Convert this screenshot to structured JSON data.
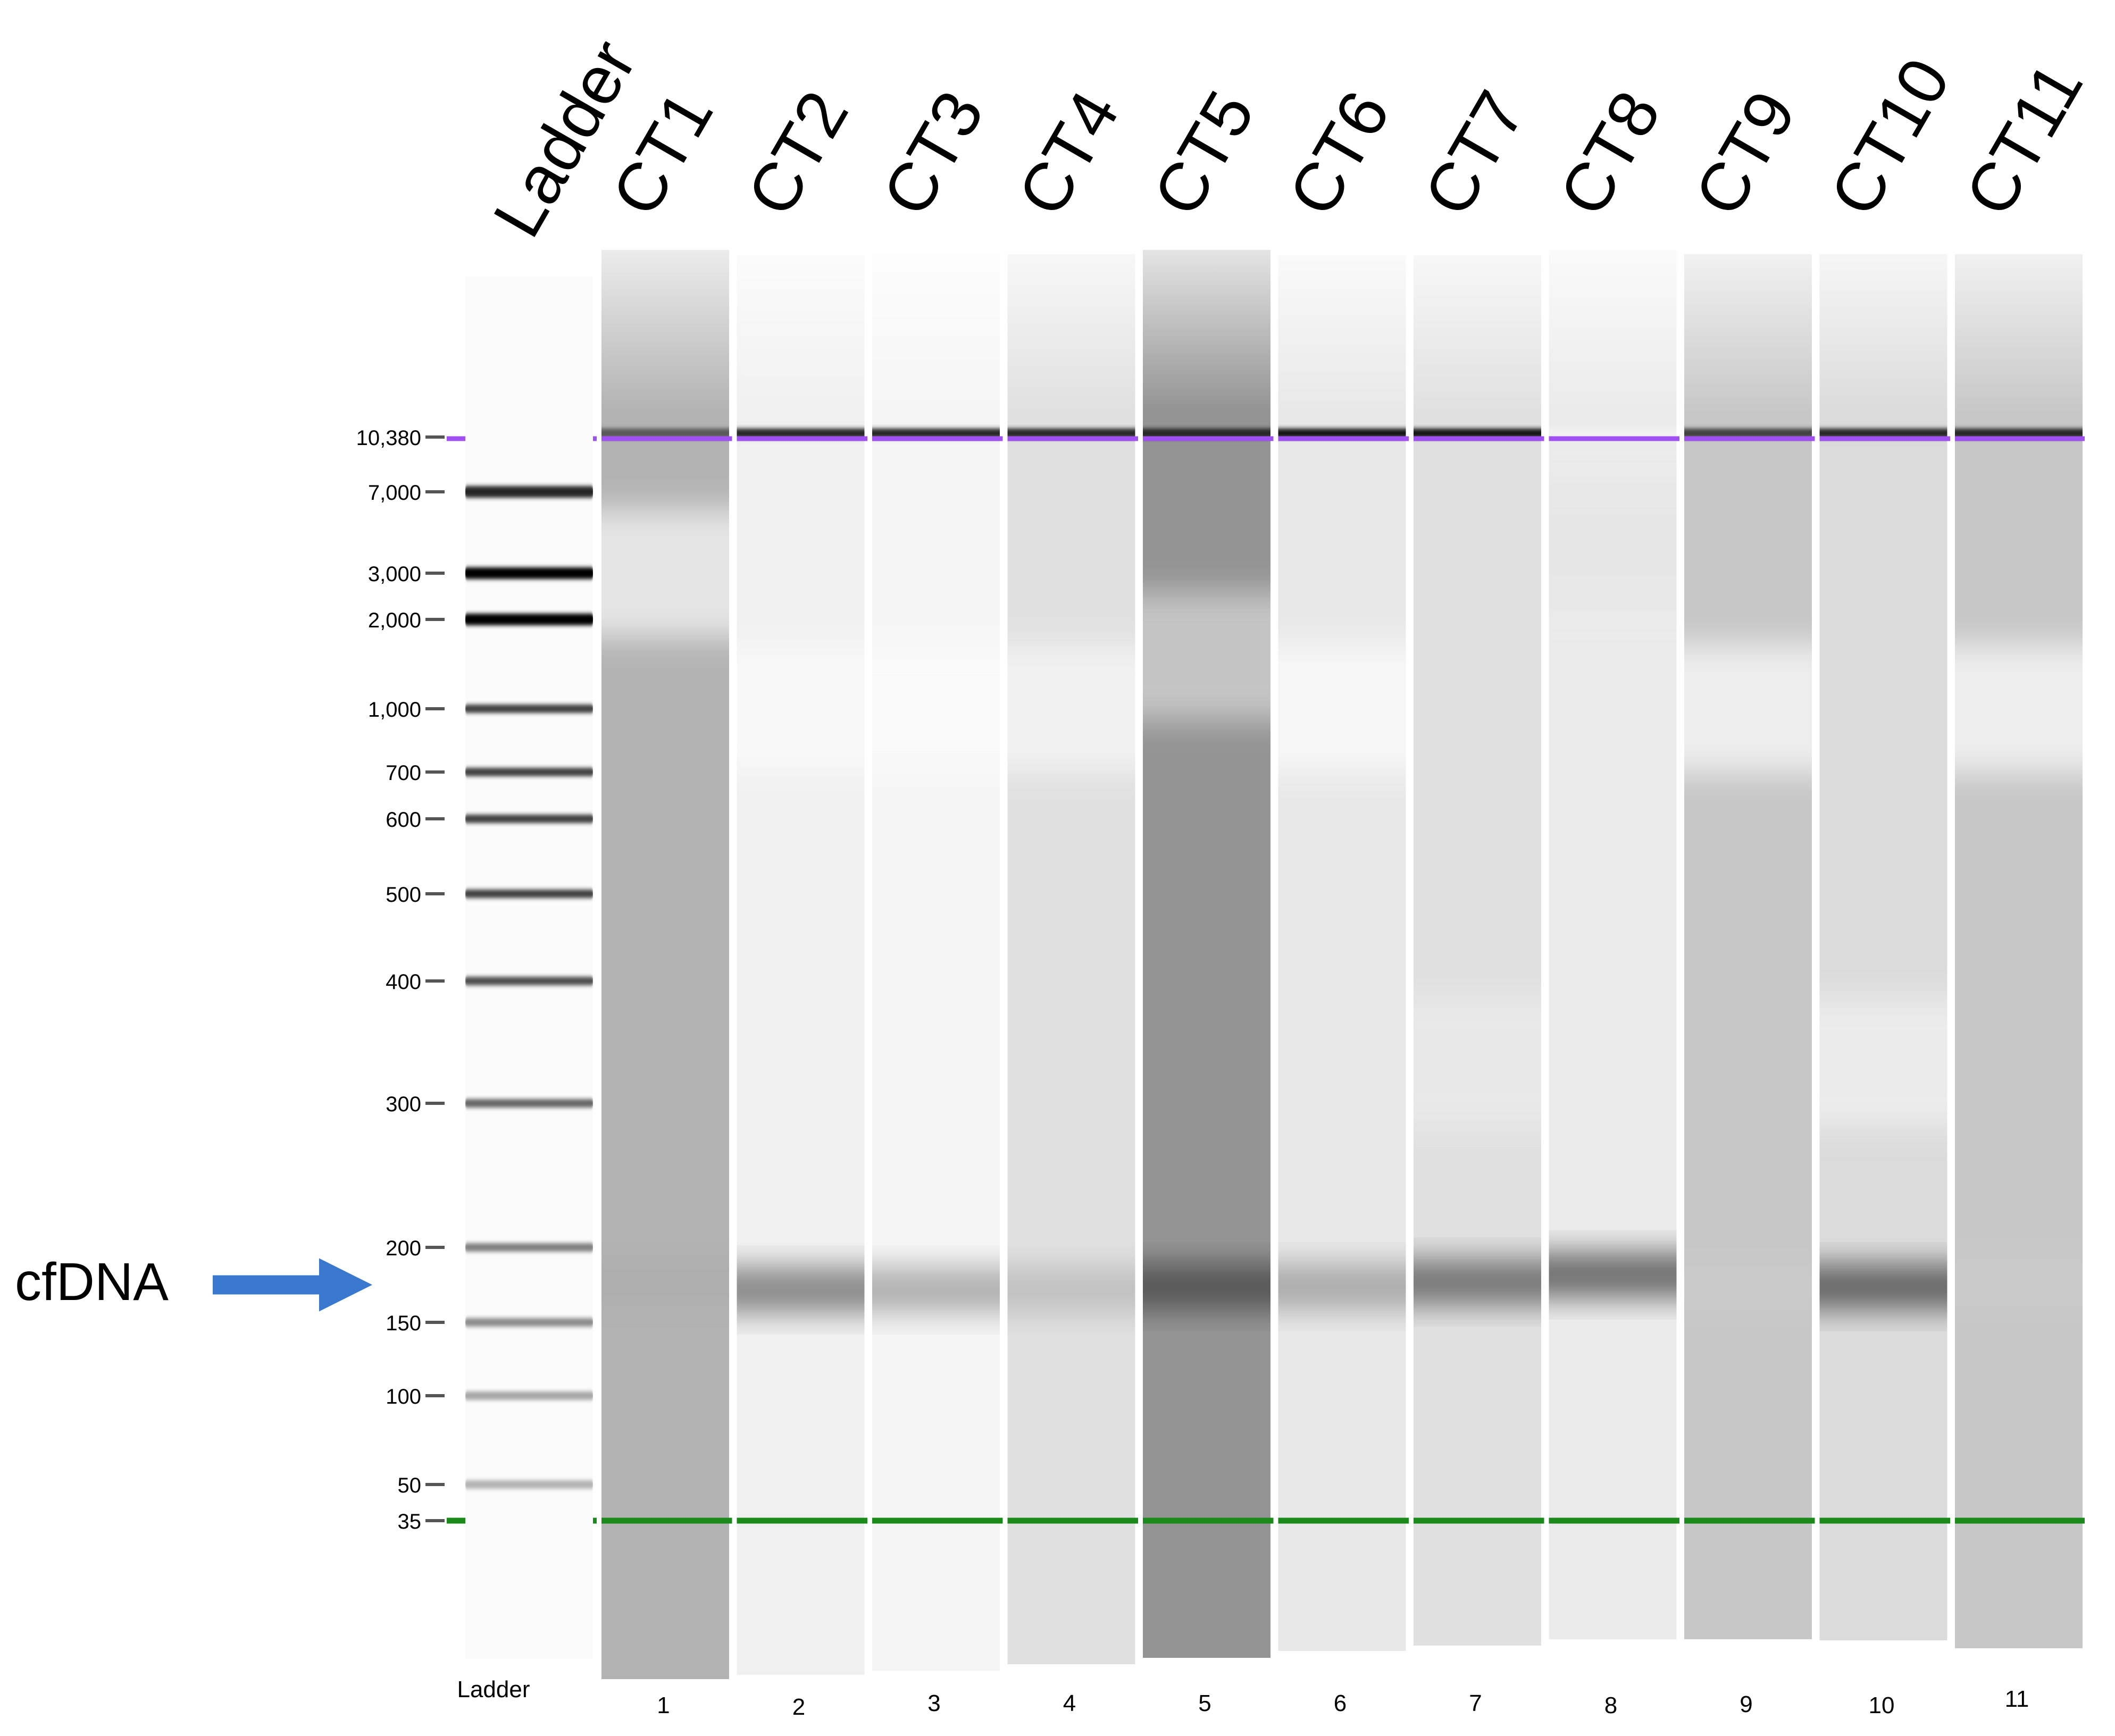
{
  "figure": {
    "title": "",
    "annotation_label": "cfDNA",
    "annotation_target_bp": 175
  },
  "ladder": {
    "header": "Ladder",
    "footer": "Ladder",
    "sizes": [
      "10,380",
      "7,000",
      "3,000",
      "2,000",
      "1,000",
      "700",
      "600",
      "500",
      "400",
      "300",
      "200",
      "150",
      "100",
      "50",
      "35"
    ],
    "size_values": [
      10380,
      7000,
      3000,
      2000,
      1000,
      700,
      600,
      500,
      400,
      300,
      200,
      150,
      100,
      50,
      35
    ],
    "band_intensity": [
      0.25,
      0.85,
      1.0,
      1.0,
      0.75,
      0.75,
      0.75,
      0.75,
      0.7,
      0.6,
      0.5,
      0.45,
      0.35,
      0.3,
      0.9
    ]
  },
  "markers": {
    "upper_bp": 10380,
    "upper_color": "#a050f0",
    "lower_bp": 35,
    "lower_color": "#1a8a1a"
  },
  "lanes": [
    {
      "name": "CT1",
      "number": "1",
      "background": 0.3,
      "peak_bp": 175,
      "peak": 0.2,
      "top_band": 0.65,
      "smear_bp": 3000,
      "smear": 0.05
    },
    {
      "name": "CT2",
      "number": "2",
      "background": 0.06,
      "peak_bp": 170,
      "peak": 0.45,
      "top_band": 0.85,
      "smear_bp": 1000,
      "smear": 0.02
    },
    {
      "name": "CT3",
      "number": "3",
      "background": 0.04,
      "peak_bp": 170,
      "peak": 0.3,
      "top_band": 0.85,
      "smear_bp": 1000,
      "smear": 0.02
    },
    {
      "name": "CT4",
      "number": "4",
      "background": 0.12,
      "peak_bp": 170,
      "peak": 0.2,
      "top_band": 0.85,
      "smear_bp": 1000,
      "smear": 0.04
    },
    {
      "name": "CT5",
      "number": "5",
      "background": 0.42,
      "peak_bp": 172,
      "peak": 0.5,
      "top_band": 0.85,
      "smear_bp": 1500,
      "smear": 0.18
    },
    {
      "name": "CT6",
      "number": "6",
      "background": 0.09,
      "peak_bp": 172,
      "peak": 0.3,
      "top_band": 0.9,
      "smear_bp": 1000,
      "smear": 0.02
    },
    {
      "name": "CT7",
      "number": "7",
      "background": 0.12,
      "peak_bp": 175,
      "peak": 0.5,
      "top_band": 0.9,
      "smear_bp": 330,
      "smear": 0.08
    },
    {
      "name": "CT8",
      "number": "8",
      "background": 0.08,
      "peak_bp": 180,
      "peak": 0.55,
      "top_band": 0.05,
      "smear_bp": 4000,
      "smear": 0.1
    },
    {
      "name": "CT9",
      "number": "9",
      "background": 0.22,
      "peak_bp": 172,
      "peak": 0.12,
      "top_band": 0.75,
      "smear_bp": 1000,
      "smear": 0.03
    },
    {
      "name": "CT10",
      "number": "10",
      "background": 0.14,
      "peak_bp": 172,
      "peak": 0.55,
      "top_band": 0.85,
      "smear_bp": 330,
      "smear": 0.06
    },
    {
      "name": "CT11",
      "number": "11",
      "background": 0.22,
      "peak_bp": 175,
      "peak": 0.12,
      "top_band": 0.85,
      "smear_bp": 1000,
      "smear": 0.03
    }
  ]
}
